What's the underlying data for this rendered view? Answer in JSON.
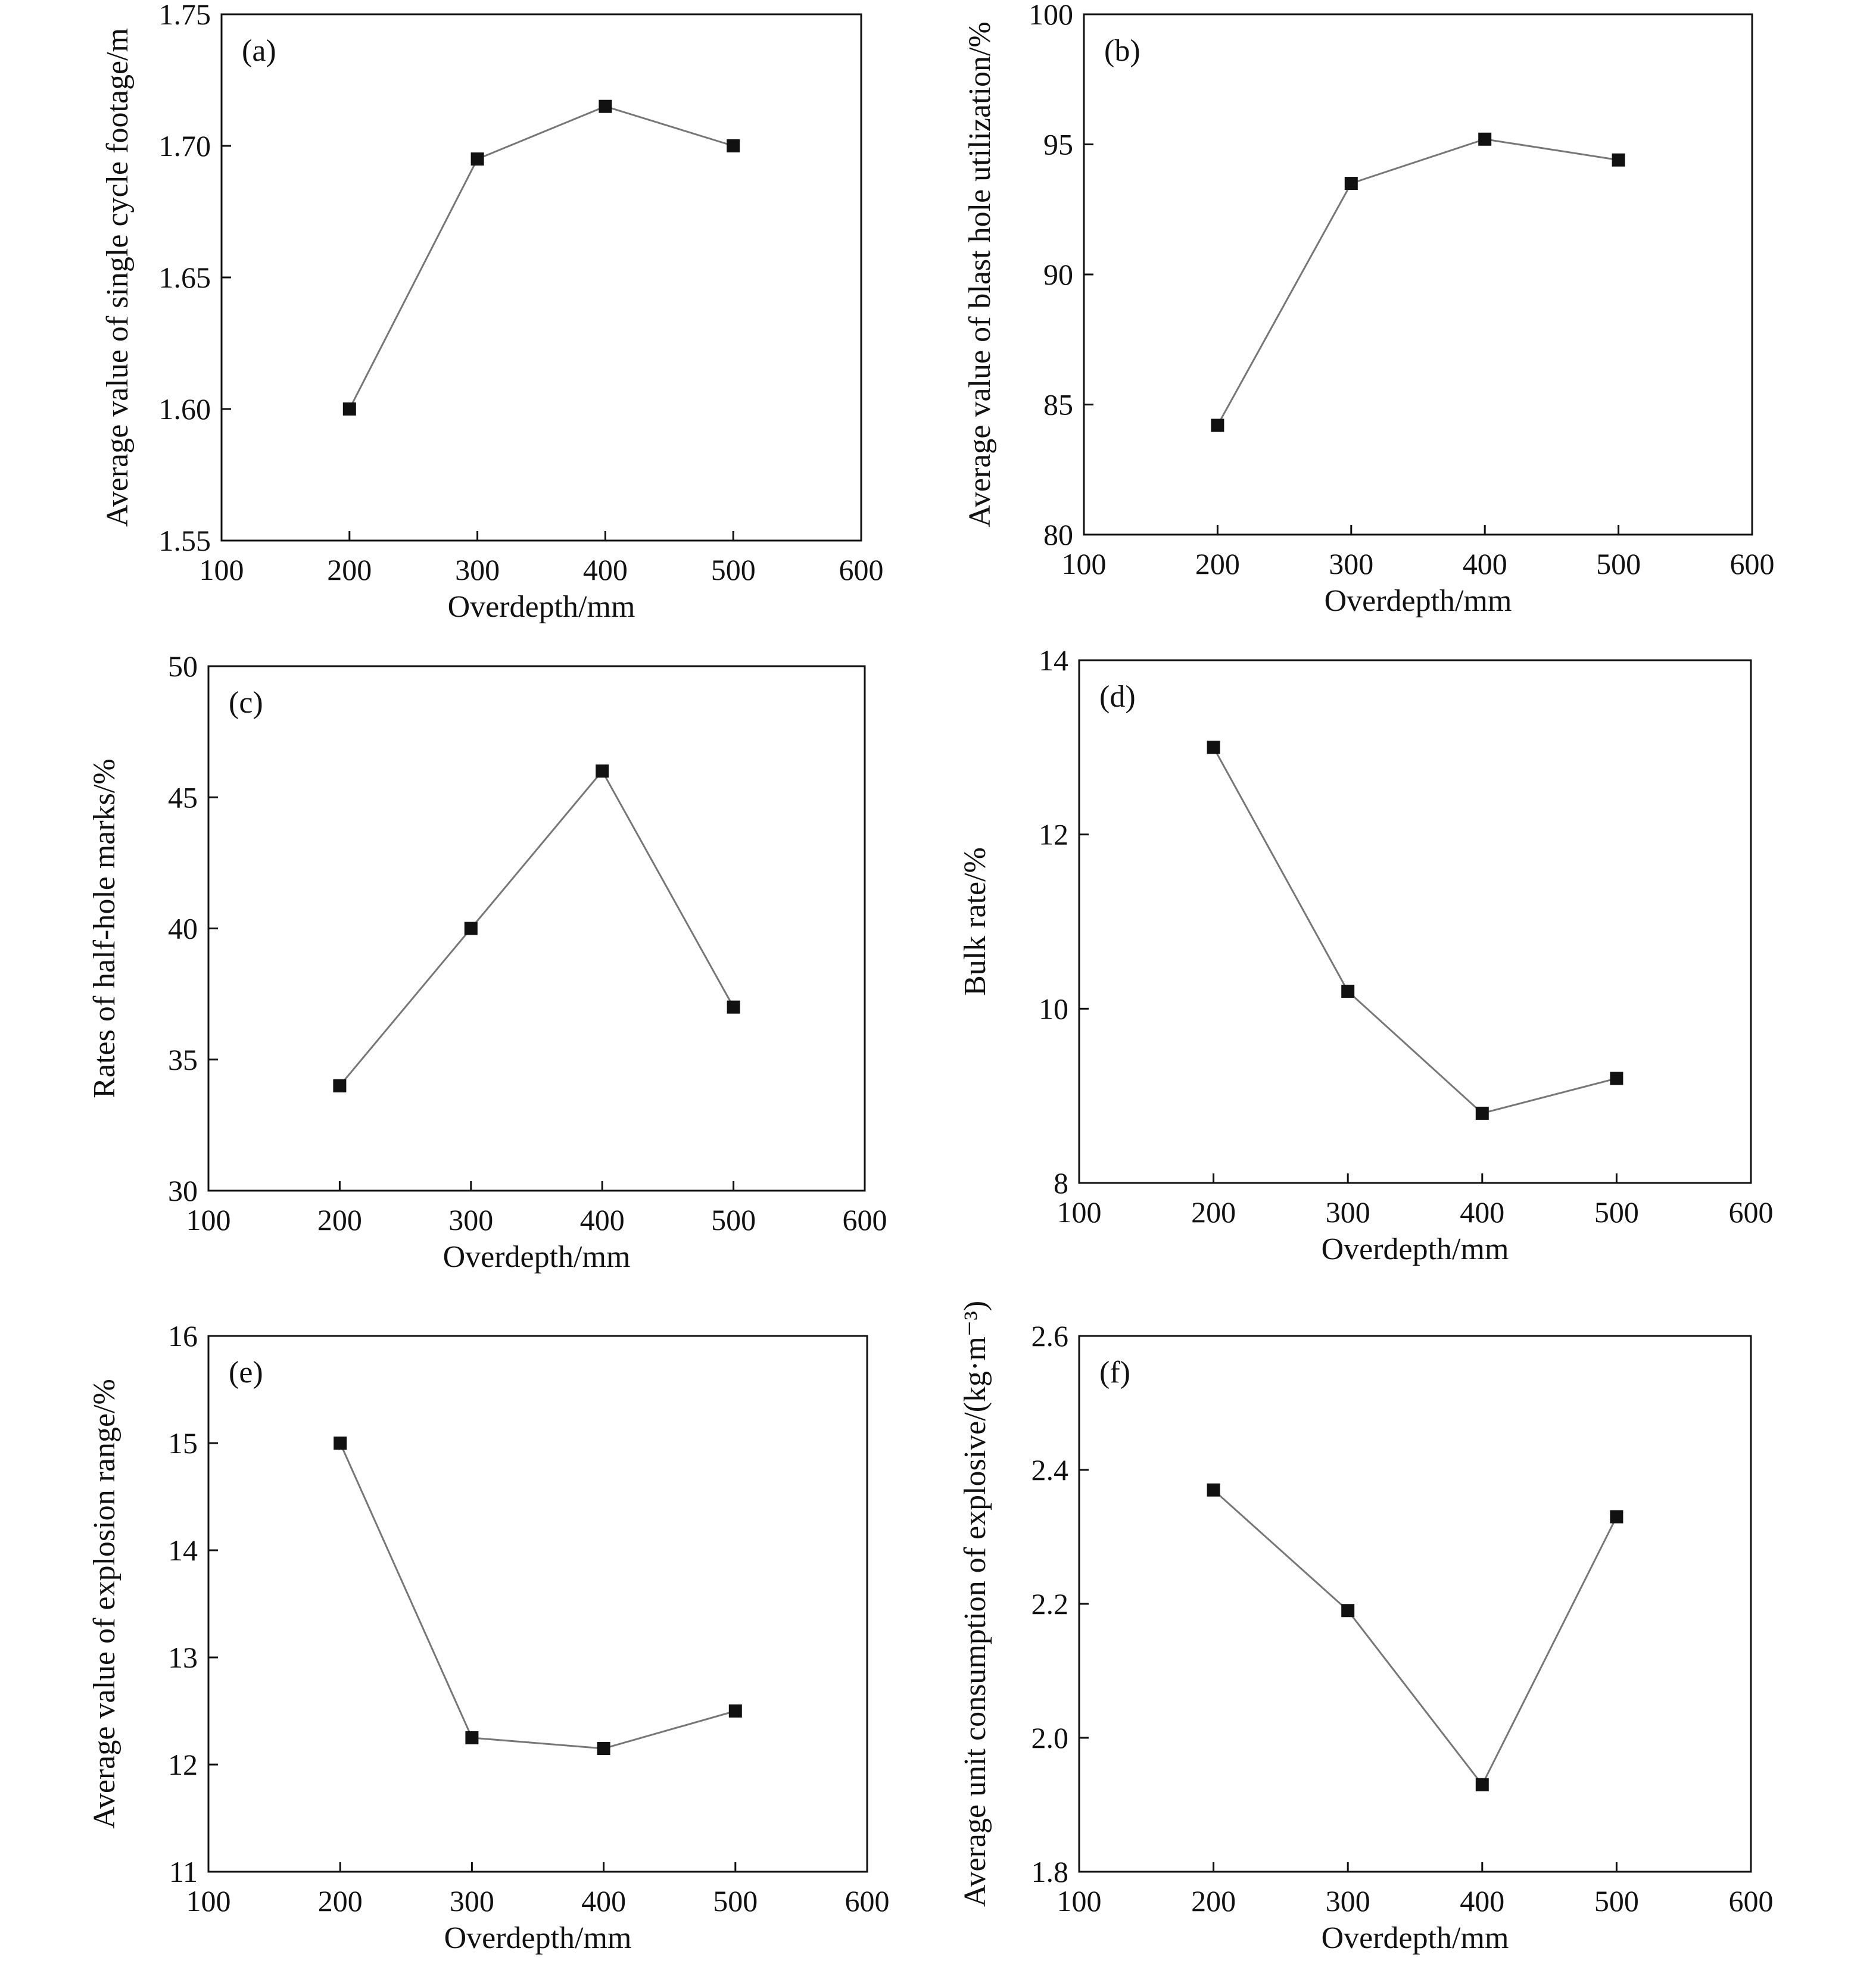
{
  "figure": {
    "line_color": "#777777",
    "marker_color": "#111111",
    "axis_color": "#111111"
  },
  "chart_data": [
    {
      "panel": "(a)",
      "type": "line",
      "xlabel": "Overdepth/mm",
      "ylabel": "Average value of single cycle footage/m",
      "xlim": [
        100,
        600
      ],
      "ylim": [
        1.55,
        1.75
      ],
      "xticks": [
        "100",
        "200",
        "300",
        "400",
        "500",
        "600"
      ],
      "yticks": [
        "1.55",
        "1.60",
        "1.65",
        "1.70",
        "1.75"
      ],
      "x": [
        200,
        300,
        400,
        500
      ],
      "y": [
        1.6,
        1.695,
        1.715,
        1.7
      ]
    },
    {
      "panel": "(b)",
      "type": "line",
      "xlabel": "Overdepth/mm",
      "ylabel": "Average value of blast hole utilization/%",
      "xlim": [
        100,
        600
      ],
      "ylim": [
        80,
        100
      ],
      "xticks": [
        "100",
        "200",
        "300",
        "400",
        "500",
        "600"
      ],
      "yticks": [
        "80",
        "85",
        "90",
        "95",
        "100"
      ],
      "x": [
        200,
        300,
        400,
        500
      ],
      "y": [
        84.2,
        93.5,
        95.2,
        94.4
      ]
    },
    {
      "panel": "(c)",
      "type": "line",
      "xlabel": "Overdepth/mm",
      "ylabel": "Rates of half-hole marks/%",
      "xlim": [
        100,
        600
      ],
      "ylim": [
        30,
        50
      ],
      "xticks": [
        "100",
        "200",
        "300",
        "400",
        "500",
        "600"
      ],
      "yticks": [
        "30",
        "35",
        "40",
        "45",
        "50"
      ],
      "x": [
        200,
        300,
        400,
        500
      ],
      "y": [
        34,
        40,
        46,
        37
      ]
    },
    {
      "panel": "(d)",
      "type": "line",
      "xlabel": "Overdepth/mm",
      "ylabel": "Bulk rate/%",
      "xlim": [
        100,
        600
      ],
      "ylim": [
        8,
        14
      ],
      "xticks": [
        "100",
        "200",
        "300",
        "400",
        "500",
        "600"
      ],
      "yticks": [
        "8",
        "10",
        "12",
        "14"
      ],
      "x": [
        200,
        300,
        400,
        500
      ],
      "y": [
        13.0,
        10.2,
        8.8,
        9.2
      ]
    },
    {
      "panel": "(e)",
      "type": "line",
      "xlabel": "Overdepth/mm",
      "ylabel": "Average value of explosion range/%",
      "xlim": [
        100,
        600
      ],
      "ylim": [
        11,
        16
      ],
      "xticks": [
        "100",
        "200",
        "300",
        "400",
        "500",
        "600"
      ],
      "yticks": [
        "11",
        "12",
        "13",
        "14",
        "15",
        "16"
      ],
      "x": [
        200,
        300,
        400,
        500
      ],
      "y": [
        15.0,
        12.25,
        12.15,
        12.5
      ]
    },
    {
      "panel": "(f)",
      "type": "line",
      "xlabel": "Overdepth/mm",
      "ylabel": "Average unit consumption of explosive/(kg·m⁻³)",
      "xlim": [
        100,
        600
      ],
      "ylim": [
        1.8,
        2.6
      ],
      "xticks": [
        "100",
        "200",
        "300",
        "400",
        "500",
        "600"
      ],
      "yticks": [
        "1.8",
        "2.0",
        "2.2",
        "2.4",
        "2.6"
      ],
      "x": [
        200,
        300,
        400,
        500
      ],
      "y": [
        2.37,
        2.19,
        1.93,
        2.33
      ]
    }
  ]
}
